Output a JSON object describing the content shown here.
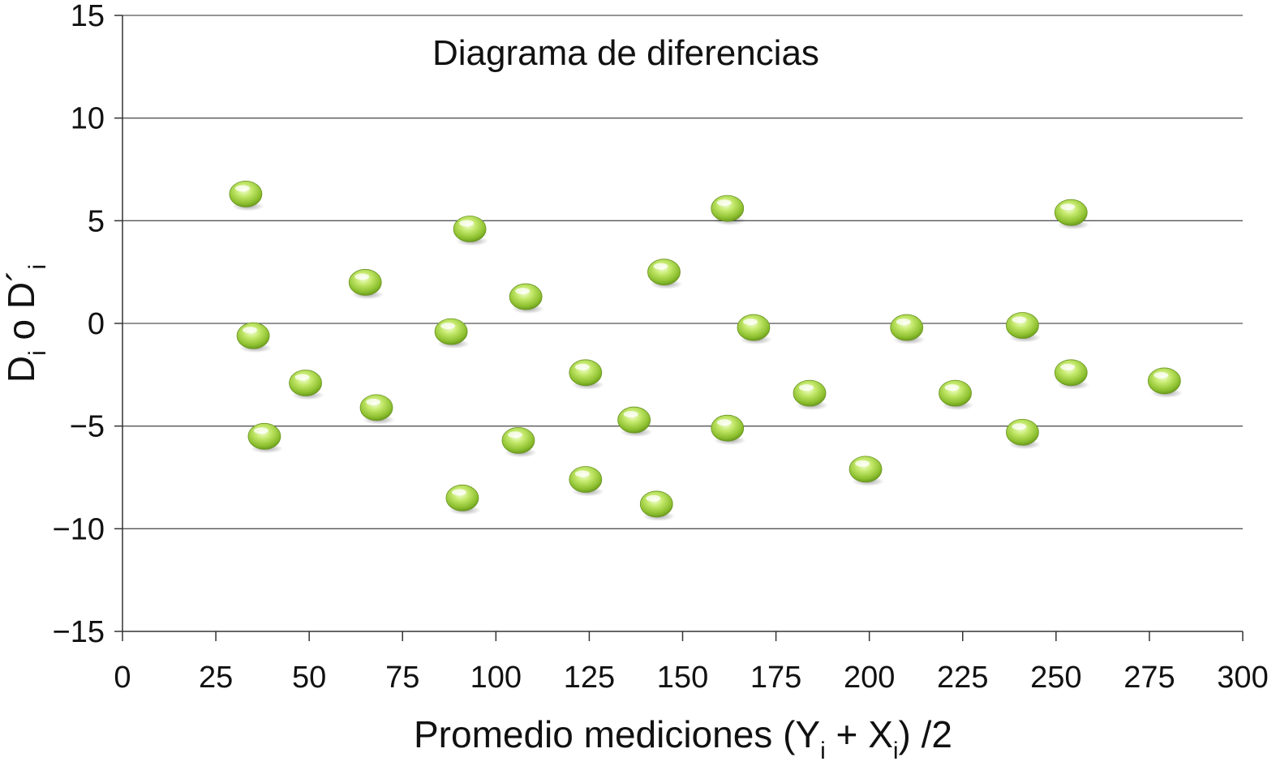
{
  "chart_data": {
    "type": "scatter",
    "title": "Diagrama de diferencias",
    "xlabel": {
      "main": "Promedio mediciones (Y",
      "sub1": "i",
      "mid": " + X",
      "sub2": "i",
      "end": ") /2"
    },
    "ylabel": {
      "p1": "D",
      "s1": "i",
      "p2": " o D´",
      "s2": "i"
    },
    "xlim": [
      0,
      300
    ],
    "ylim": [
      -15,
      15
    ],
    "xticks": [
      0,
      25,
      50,
      75,
      100,
      125,
      150,
      175,
      200,
      225,
      250,
      275,
      300
    ],
    "yticks": [
      15,
      10,
      5,
      0,
      -5,
      -10,
      -15
    ],
    "ytick_labels": [
      "15",
      "10",
      "5",
      "0",
      "−5",
      "−10",
      "−15"
    ],
    "grid": true,
    "marker_color": "#9ccc3c",
    "points": [
      {
        "x": 33,
        "y": 6.3
      },
      {
        "x": 35,
        "y": -0.6
      },
      {
        "x": 38,
        "y": -5.5
      },
      {
        "x": 49,
        "y": -2.9
      },
      {
        "x": 65,
        "y": 2.0
      },
      {
        "x": 68,
        "y": -4.1
      },
      {
        "x": 88,
        "y": -0.4
      },
      {
        "x": 91,
        "y": -8.5
      },
      {
        "x": 93,
        "y": 4.6
      },
      {
        "x": 106,
        "y": -5.7
      },
      {
        "x": 108,
        "y": 1.3
      },
      {
        "x": 124,
        "y": -2.4
      },
      {
        "x": 124,
        "y": -7.6
      },
      {
        "x": 137,
        "y": -4.7
      },
      {
        "x": 143,
        "y": -8.8
      },
      {
        "x": 145,
        "y": 2.5
      },
      {
        "x": 162,
        "y": 5.6
      },
      {
        "x": 162,
        "y": -5.1
      },
      {
        "x": 169,
        "y": -0.2
      },
      {
        "x": 184,
        "y": -3.4
      },
      {
        "x": 199,
        "y": -7.1
      },
      {
        "x": 210,
        "y": -0.2
      },
      {
        "x": 223,
        "y": -3.4
      },
      {
        "x": 241,
        "y": -0.1
      },
      {
        "x": 241,
        "y": -5.3
      },
      {
        "x": 254,
        "y": 5.4
      },
      {
        "x": 254,
        "y": -2.4
      },
      {
        "x": 279,
        "y": -2.8
      }
    ]
  }
}
